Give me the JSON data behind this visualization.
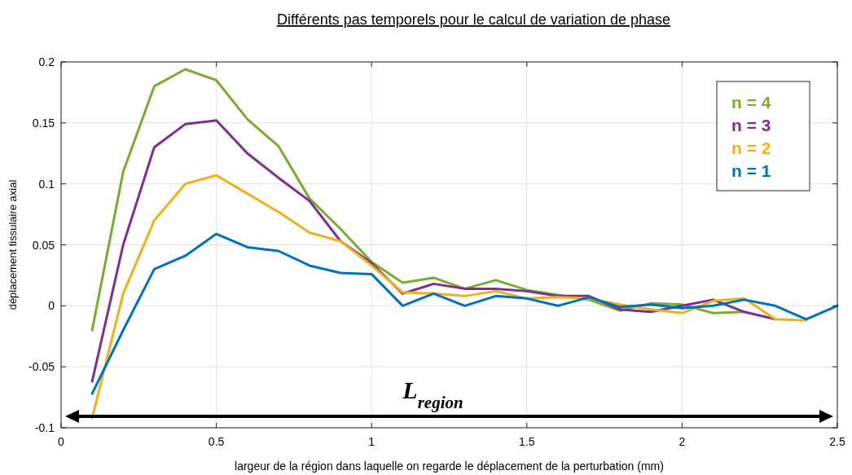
{
  "chart_data": {
    "type": "line",
    "title": "Différents pas temporels pour le calcul de variation de phase",
    "xlabel": "largeur de la région dans laquelle on regarde le déplacement de la perturbation (mm)",
    "ylabel": "déplacement tissulaire axial",
    "series": [
      {
        "name": "n = 4",
        "color": "#77ac30",
        "x": [
          0.1,
          0.2,
          0.3,
          0.4,
          0.5,
          0.6,
          0.7,
          0.8,
          0.9,
          1.0,
          1.1,
          1.2,
          1.3,
          1.4,
          1.5,
          1.6,
          1.7,
          1.8,
          1.9,
          2.0,
          2.1,
          2.2
        ],
        "values": [
          -0.02,
          0.11,
          0.18,
          0.194,
          0.185,
          0.153,
          0.131,
          0.088,
          0.063,
          0.036,
          0.019,
          0.023,
          0.014,
          0.021,
          0.013,
          0.009,
          0.005,
          -0.004,
          0.002,
          0.001,
          -0.006,
          -0.005
        ]
      },
      {
        "name": "n = 3",
        "color": "#7e2f8e",
        "x": [
          0.1,
          0.2,
          0.3,
          0.4,
          0.5,
          0.6,
          0.7,
          0.8,
          0.9,
          1.0,
          1.1,
          1.2,
          1.3,
          1.4,
          1.5,
          1.6,
          1.7,
          1.8,
          1.9,
          2.0,
          2.1,
          2.2,
          2.3
        ],
        "values": [
          -0.062,
          0.05,
          0.13,
          0.149,
          0.152,
          0.125,
          0.105,
          0.086,
          0.053,
          0.035,
          0.01,
          0.018,
          0.014,
          0.014,
          0.012,
          0.008,
          0.008,
          -0.003,
          -0.005,
          0.0,
          0.005,
          -0.005,
          -0.011
        ]
      },
      {
        "name": "n = 2",
        "color": "#edb120",
        "x": [
          0.1,
          0.2,
          0.3,
          0.4,
          0.5,
          0.6,
          0.7,
          0.8,
          0.9,
          1.0,
          1.1,
          1.2,
          1.3,
          1.4,
          1.5,
          1.6,
          1.7,
          1.8,
          1.9,
          2.0,
          2.1,
          2.2,
          2.3,
          2.4
        ],
        "values": [
          -0.092,
          0.01,
          0.07,
          0.1,
          0.107,
          0.092,
          0.077,
          0.06,
          0.053,
          0.033,
          0.011,
          0.01,
          0.008,
          0.012,
          0.006,
          0.007,
          0.006,
          0.001,
          -0.003,
          -0.006,
          0.004,
          0.006,
          -0.011,
          -0.012
        ]
      },
      {
        "name": "n = 1",
        "color": "#0072bd",
        "x": [
          0.1,
          0.2,
          0.3,
          0.4,
          0.5,
          0.6,
          0.7,
          0.8,
          0.9,
          1.0,
          1.1,
          1.2,
          1.3,
          1.4,
          1.5,
          1.6,
          1.7,
          1.8,
          1.9,
          2.0,
          2.1,
          2.2,
          2.3,
          2.4,
          2.5
        ],
        "values": [
          -0.072,
          -0.02,
          0.03,
          0.041,
          0.059,
          0.048,
          0.045,
          0.033,
          0.027,
          0.026,
          0.0,
          0.01,
          0.0,
          0.008,
          0.006,
          0.0,
          0.007,
          -0.001,
          0.001,
          -0.002,
          0.0,
          0.005,
          0.0,
          -0.011,
          0.0
        ]
      }
    ],
    "annotations": [
      "L$_{region}$"
    ],
    "xlim": [
      0,
      2.5
    ],
    "xticks": [
      0,
      0.5,
      1,
      1.5,
      2,
      2.5
    ],
    "ylim": [
      -0.1,
      0.2
    ],
    "yticks": [
      -0.1,
      -0.05,
      0,
      0.05,
      0.1,
      0.15,
      0.2
    ],
    "grid": true,
    "legend": "top right",
    "line_style": "solid",
    "marker": "none"
  }
}
